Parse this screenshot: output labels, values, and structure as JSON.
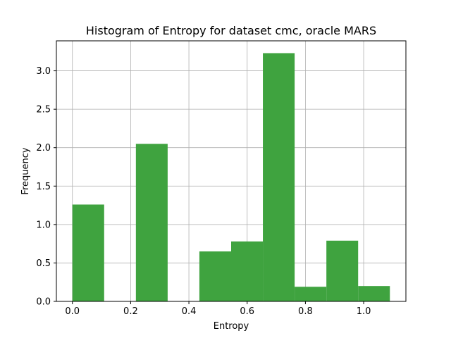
{
  "chart_data": {
    "type": "bar",
    "title": "Histogram of Entropy for dataset cmc, oracle MARS",
    "xlabel": "Entropy",
    "ylabel": "Frequency",
    "xlim": [
      -0.055,
      1.145
    ],
    "ylim": [
      0,
      3.39
    ],
    "xticks": [
      0.0,
      0.2,
      0.4,
      0.6,
      0.8,
      1.0
    ],
    "xtick_labels": [
      "0.0",
      "0.2",
      "0.4",
      "0.6",
      "0.8",
      "1.0"
    ],
    "yticks": [
      0.0,
      0.5,
      1.0,
      1.5,
      2.0,
      2.5,
      3.0
    ],
    "ytick_labels": [
      "0.0",
      "0.5",
      "1.0",
      "1.5",
      "2.0",
      "2.5",
      "3.0"
    ],
    "grid": true,
    "bin_edges": [
      0.0,
      0.109,
      0.218,
      0.327,
      0.436,
      0.545,
      0.654,
      0.763,
      0.872,
      0.981,
      1.09
    ],
    "values": [
      1.26,
      0.0,
      2.05,
      0.0,
      0.65,
      0.78,
      3.23,
      0.19,
      0.79,
      0.2
    ],
    "bar_color": "#3fa33f"
  }
}
